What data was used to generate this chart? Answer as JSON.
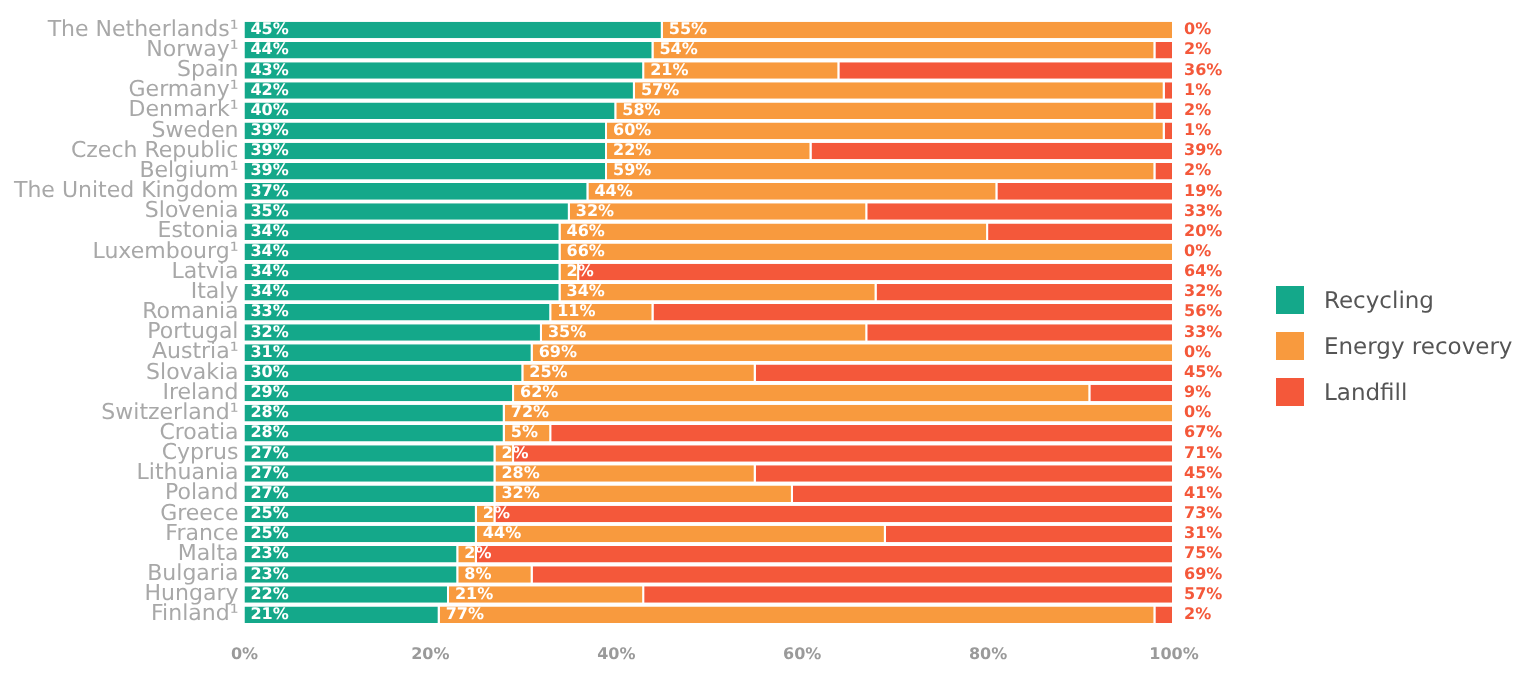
{
  "chart_data": {
    "type": "bar",
    "orientation": "horizontal",
    "stacked": true,
    "grid": false,
    "legend": "right",
    "categories": [
      "The Netherlands¹",
      "Norway¹",
      "Spain",
      "Germany¹",
      "Denmark¹",
      "Sweden",
      "Czech Republic",
      "Belgium¹",
      "The United Kingdom",
      "Slovenia",
      "Estonia",
      "Luxembourg¹",
      "Latvia",
      "Italy",
      "Romania",
      "Portugal",
      "Austria¹",
      "Slovakia",
      "Ireland",
      "Switzerland¹",
      "Croatia",
      "Cyprus",
      "Lithuania",
      "Poland",
      "Greece",
      "France",
      "Malta",
      "Bulgaria",
      "Hungary",
      "Finland¹"
    ],
    "xlim": [
      0,
      100
    ],
    "xticks": [
      {
        "value": 0,
        "label": "0%"
      },
      {
        "value": 20,
        "label": "20%"
      },
      {
        "value": 40,
        "label": "40%"
      },
      {
        "value": 60,
        "label": "60%"
      },
      {
        "value": 80,
        "label": "80%"
      },
      {
        "value": 100,
        "label": "100%"
      }
    ],
    "series": [
      {
        "name": "Recycling",
        "color": "#14a88a",
        "values": [
          45,
          44,
          43,
          42,
          40,
          39,
          39,
          39,
          37,
          35,
          34,
          34,
          34,
          34,
          33,
          32,
          31,
          30,
          29,
          28,
          28,
          27,
          27,
          27,
          25,
          25,
          23,
          23,
          22,
          21
        ],
        "value_labels": [
          "45%",
          "44%",
          "43%",
          "42%",
          "40%",
          "39%",
          "39%",
          "39%",
          "37%",
          "35%",
          "34%",
          "34%",
          "34%",
          "34%",
          "33%",
          "32%",
          "31%",
          "30%",
          "29%",
          "28%",
          "28%",
          "27%",
          "27%",
          "27%",
          "25%",
          "25%",
          "23%",
          "23%",
          "22%",
          "21%"
        ]
      },
      {
        "name": "Energy recovery",
        "color": "#f89a3e",
        "values": [
          55,
          54,
          21,
          57,
          58,
          60,
          22,
          59,
          44,
          32,
          46,
          66,
          2,
          34,
          11,
          35,
          69,
          25,
          62,
          72,
          5,
          2,
          28,
          32,
          2,
          44,
          2,
          8,
          21,
          77
        ],
        "value_labels": [
          "55%",
          "54%",
          "21%",
          "57%",
          "58%",
          "60%",
          "22%",
          "59%",
          "44%",
          "32%",
          "46%",
          "66%",
          "2%",
          "34%",
          "11%",
          "35%",
          "69%",
          "25%",
          "62%",
          "72%",
          "5%",
          "2%",
          "28%",
          "32%",
          "2%",
          "44%",
          "2%",
          "8%",
          "21%",
          "77%"
        ]
      },
      {
        "name": "Landfill",
        "color": "#f4583a",
        "values": [
          0,
          2,
          36,
          1,
          2,
          1,
          39,
          2,
          19,
          33,
          20,
          0,
          64,
          32,
          56,
          33,
          0,
          45,
          9,
          0,
          67,
          71,
          45,
          41,
          73,
          31,
          75,
          69,
          57,
          2
        ],
        "value_labels": [
          "0%",
          "2%",
          "36%",
          "1%",
          "2%",
          "1%",
          "39%",
          "2%",
          "19%",
          "33%",
          "20%",
          "0%",
          "64%",
          "32%",
          "56%",
          "33%",
          "0%",
          "45%",
          "9%",
          "0%",
          "67%",
          "71%",
          "45%",
          "41%",
          "73%",
          "31%",
          "75%",
          "69%",
          "57%",
          "2%"
        ]
      }
    ]
  }
}
